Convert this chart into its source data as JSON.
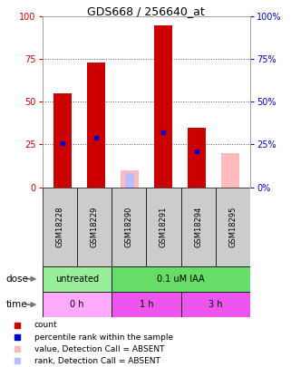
{
  "title": "GDS668 / 256640_at",
  "samples": [
    "GSM18228",
    "GSM18229",
    "GSM18290",
    "GSM18291",
    "GSM18294",
    "GSM18295"
  ],
  "red_bars": [
    55,
    73,
    0,
    95,
    35,
    0
  ],
  "blue_dots": [
    26,
    29,
    0,
    32,
    21,
    0
  ],
  "pink_bars": [
    0,
    0,
    10,
    0,
    0,
    20
  ],
  "lightblue_bars": [
    0,
    0,
    8,
    0,
    0,
    0
  ],
  "ylim": [
    0,
    100
  ],
  "yticks": [
    0,
    25,
    50,
    75,
    100
  ],
  "bar_color_red": "#cc0000",
  "bar_color_blue": "#0000cc",
  "bar_color_pink": "#ffbbbb",
  "bar_color_lightblue": "#bbbbff",
  "left_axis_color": "#cc0000",
  "right_axis_color": "#0000cc",
  "dose_green_light": "#99ee99",
  "dose_green_dark": "#66dd66",
  "time_pink_light": "#ffaaff",
  "time_pink_dark": "#ee55ee",
  "grid_color": "#555555",
  "bar_width": 0.55,
  "dose_groups": [
    {
      "label": "untreated",
      "start": 0,
      "end": 2
    },
    {
      "label": "0.1 uM IAA",
      "start": 2,
      "end": 6
    }
  ],
  "time_groups": [
    {
      "label": "0 h",
      "start": 0,
      "end": 2
    },
    {
      "label": "1 h",
      "start": 2,
      "end": 4
    },
    {
      "label": "3 h",
      "start": 4,
      "end": 6
    }
  ]
}
